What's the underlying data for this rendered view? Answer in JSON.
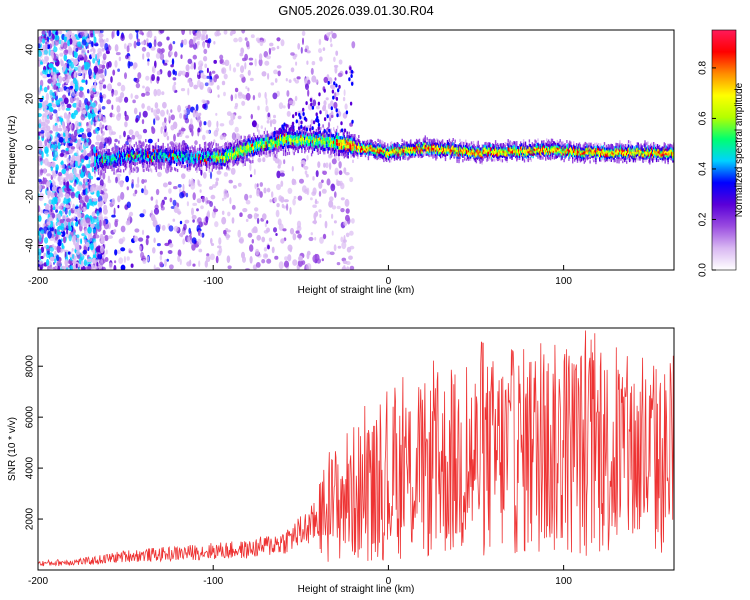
{
  "title": "GN05.2026.039.01.30.R04",
  "chart_data": [
    {
      "type": "heatmap",
      "xlabel": "Height of straight line (km)",
      "ylabel": "Frequency (Hz)",
      "xlim": [
        -200,
        163
      ],
      "ylim": [
        -50,
        48
      ],
      "xticks": [
        -200,
        -100,
        0,
        100
      ],
      "yticks": [
        -40,
        -20,
        0,
        20,
        40
      ],
      "ridge": {
        "x": [
          -165,
          -140,
          -110,
          -95,
          -80,
          -60,
          -45,
          -30,
          -15,
          0,
          20,
          50,
          90,
          120,
          163
        ],
        "frequency": [
          -5,
          -3,
          -4,
          -4,
          0,
          3,
          3,
          2,
          0,
          -2,
          0,
          -2,
          -1,
          -2,
          -2
        ]
      },
      "colorbar": {
        "label": "Normalized spectral amplitude",
        "range": [
          0,
          0.95
        ],
        "ticks": [
          0,
          0.2,
          0.4,
          0.6,
          0.8
        ],
        "tick_labels": [
          "0.0",
          "0.2",
          "0.4",
          "0.6",
          "0.8"
        ],
        "colors": [
          "#ffffff",
          "#d9b8f2",
          "#9a4ce0",
          "#5a00d8",
          "#0000ff",
          "#00d2ff",
          "#00ff70",
          "#b4ff00",
          "#ffff00",
          "#ff8c00",
          "#ff0000",
          "#ff1a5a"
        ]
      }
    },
    {
      "type": "line",
      "xlabel": "Height of straight line (km)",
      "ylabel": "SNR (10 * v/v)",
      "xlim": [
        -200,
        163
      ],
      "ylim": [
        0,
        9500
      ],
      "xticks": [
        -200,
        -100,
        0,
        100
      ],
      "yticks": [
        2000,
        4000,
        6000,
        8000
      ],
      "line_color": "#ee3333",
      "envelope": {
        "x": [
          -200,
          -170,
          -150,
          -120,
          -100,
          -80,
          -60,
          -45,
          -35,
          -25,
          -15,
          -5,
          5,
          15,
          30,
          50,
          70,
          90,
          110,
          130,
          150,
          163
        ],
        "snr": [
          250,
          350,
          550,
          650,
          750,
          800,
          1100,
          1700,
          2300,
          2900,
          3100,
          3200,
          3600,
          3800,
          4000,
          4300,
          4600,
          4700,
          4700,
          4500,
          4300,
          4200
        ]
      }
    }
  ]
}
